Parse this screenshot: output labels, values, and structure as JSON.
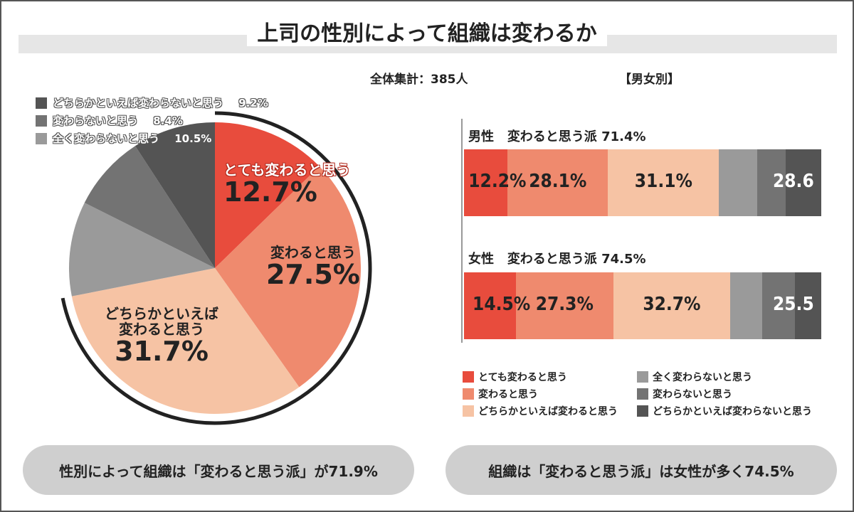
{
  "title": "上司の性別によって組織は変わるか",
  "total_label": "全体集計：385人",
  "gender_header": "【男女別】",
  "colors": {
    "very_change": "#e84c3d",
    "change": "#ef8a6e",
    "somewhat_change": "#f6c3a4",
    "not_at_all": "#9a9a9a",
    "not_change": "#737373",
    "somewhat_not": "#545454",
    "arc": "#222222"
  },
  "chart_data": [
    {
      "type": "pie",
      "slices": [
        {
          "label": "とても変わると思う",
          "value": 12.7,
          "display": "12.7%",
          "color": "#e84c3d"
        },
        {
          "label": "変わると思う",
          "value": 27.5,
          "display": "27.5%",
          "color": "#ef8a6e"
        },
        {
          "label": "どちらかといえば変わると思う",
          "label_line1": "どちらかといえば",
          "label_line2": "変わると思う",
          "value": 31.7,
          "display": "31.7%",
          "color": "#f6c3a4"
        },
        {
          "label": "全く変わらないと思う",
          "value": 10.5,
          "display": "10.5%",
          "color": "#9a9a9a"
        },
        {
          "label": "変わらないと思う",
          "value": 8.4,
          "display": "8.4%",
          "color": "#737373"
        },
        {
          "label": "どちらかといえば変わらないと思う",
          "value": 9.2,
          "display": "9.2%",
          "color": "#545454"
        }
      ],
      "highlight_total": 71.9
    },
    {
      "type": "bar",
      "orientation": "horizontal-stacked",
      "categories": [
        "とても変わると思う",
        "変わると思う",
        "どちらかといえば変わると思う",
        "全く変わらないと思う",
        "変わらないと思う",
        "どちらかといえば変わらないと思う"
      ],
      "groups": [
        {
          "name": "男性",
          "header": "変わると思う派",
          "header_value": "71.4%",
          "values": [
            12.2,
            28.1,
            31.1,
            10.7,
            8.0,
            9.9
          ],
          "labels": [
            "12.2%",
            "28.1%",
            "31.1%"
          ],
          "grey_total": "28.6"
        },
        {
          "name": "女性",
          "header": "変わると思う派",
          "header_value": "74.5%",
          "values": [
            14.5,
            27.3,
            32.7,
            9.0,
            9.2,
            7.3
          ],
          "labels": [
            "14.5%",
            "27.3%",
            "32.7%"
          ],
          "grey_total": "25.5"
        }
      ]
    }
  ],
  "legend": [
    "とても変わると思う",
    "変わると思う",
    "どちらかといえば変わると思う",
    "全く変わらないと思う",
    "変わらないと思う",
    "どちらかといえば変わらないと思う"
  ],
  "summary_left": "性別によって組織は「変わると思う派」が71.9%",
  "summary_right": "組織は「変わると思う派」は女性が多く74.5%"
}
